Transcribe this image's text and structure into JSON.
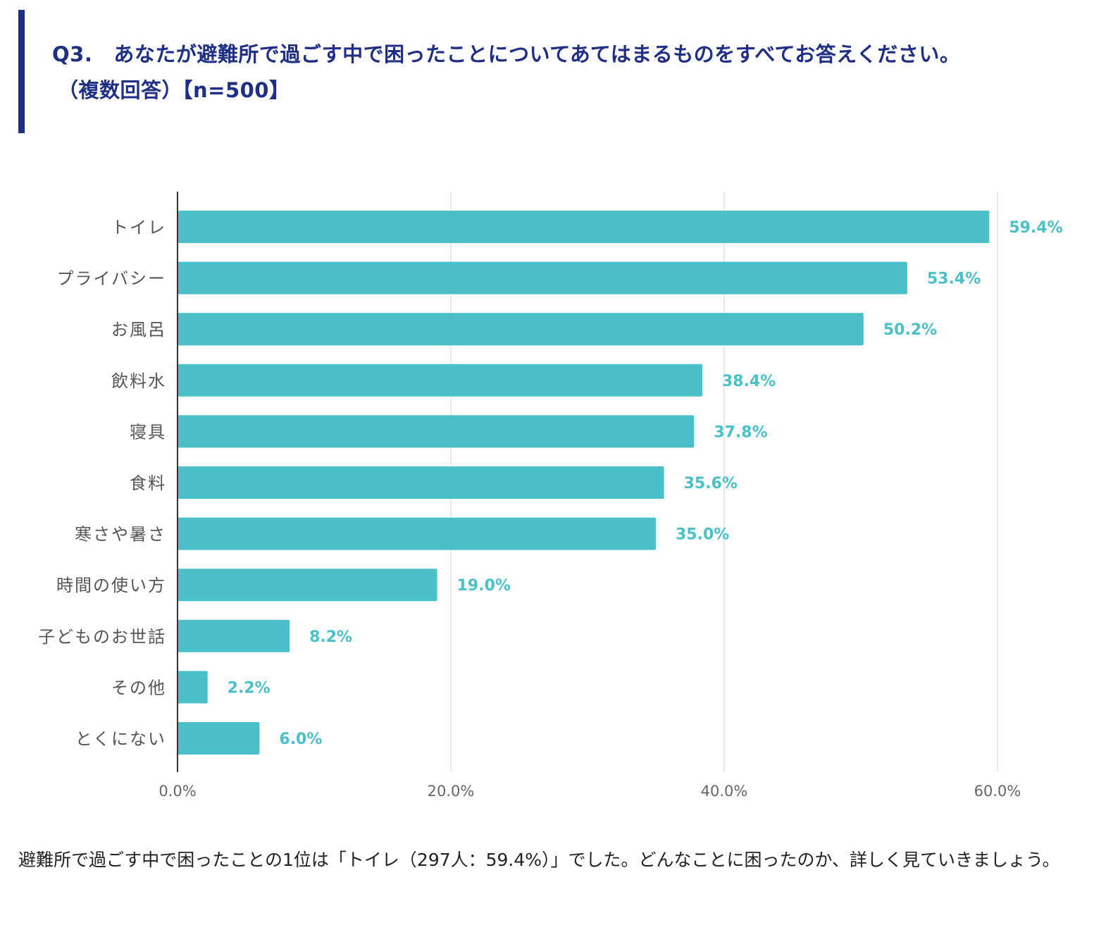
{
  "heading": {
    "number": "Q3.",
    "line1": "あなたが避難所で過ごす中で困ったことについてあてはまるものをすべてお答えください。",
    "line2": "（複数回答）【n=500】"
  },
  "chart_data": {
    "type": "bar",
    "orientation": "horizontal",
    "categories": [
      "トイレ",
      "プライバシー",
      "お風呂",
      "飲料水",
      "寝具",
      "食料",
      "寒さや暑さ",
      "時間の使い方",
      "子どものお世話",
      "その他",
      "とくにない"
    ],
    "values": [
      59.4,
      53.4,
      50.2,
      38.4,
      37.8,
      35.6,
      35.0,
      19.0,
      8.2,
      2.2,
      6.0
    ],
    "value_labels": [
      "59.4%",
      "53.4%",
      "50.2%",
      "38.4%",
      "37.8%",
      "35.6%",
      "35.0%",
      "19.0%",
      "8.2%",
      "2.2%",
      "6.0%"
    ],
    "xlim": [
      0,
      60
    ],
    "ticks": [
      0,
      20,
      40,
      60
    ],
    "tick_labels": [
      "0.0%",
      "20.0%",
      "40.0%",
      "60.0%"
    ],
    "grid": true,
    "bar_color": "#4ac0c8",
    "label_color": "#4ac0c8",
    "xlabel": "",
    "ylabel": "",
    "title": ""
  },
  "footer": {
    "text": "避難所で過ごす中で困ったことの1位は「トイレ（297人：59.4%）」でした。どんなことに困ったのか、詳しく見ていきましょう。"
  },
  "colors": {
    "accent": "#1f2f86",
    "bar": "#4ac0c8"
  }
}
